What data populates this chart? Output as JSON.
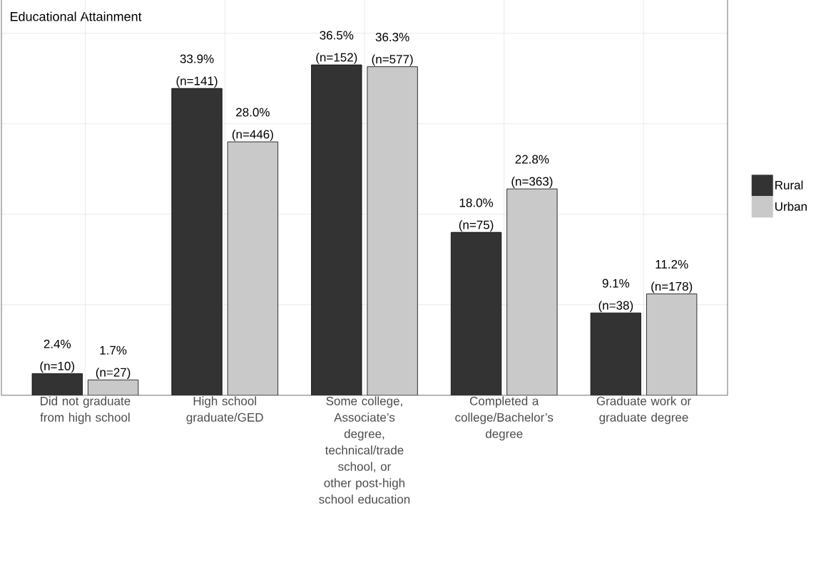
{
  "chart_data": {
    "type": "bar",
    "title": "Educational Attainment",
    "categories": [
      "Did not graduate from high school",
      "High school graduate/GED",
      "Some college, Associate’s degree, technical/trade school, or other post-high school education",
      "Completed a college/Bachelor’s degree",
      "Graduate work or graduate degree"
    ],
    "series": [
      {
        "name": "Rural",
        "color": "#333333",
        "values": [
          2.4,
          33.9,
          36.5,
          18.0,
          9.1
        ],
        "value_labels": [
          "2.4% (n=10)",
          "33.9% (n=141)",
          "36.5% (n=152)",
          "18.0% (n=75)",
          "9.1% (n=38)"
        ]
      },
      {
        "name": "Urban",
        "color": "#c9c9c9",
        "values": [
          1.7,
          28.0,
          36.3,
          22.8,
          11.2
        ],
        "value_labels": [
          "1.7% (n=27)",
          "28.0% (n=446)",
          "36.3% (n=577)",
          "22.8% (n=363)",
          "11.2% (n=178)"
        ]
      }
    ],
    "ylim": [
      0,
      44
    ],
    "yticks": [
      {
        "value": 10,
        "label": null
      },
      {
        "value": 20,
        "label": null
      },
      {
        "value": 30,
        "label": null
      },
      {
        "value": 40,
        "label": null
      }
    ],
    "tick_labels": "x",
    "grid": true,
    "legend": "right"
  }
}
